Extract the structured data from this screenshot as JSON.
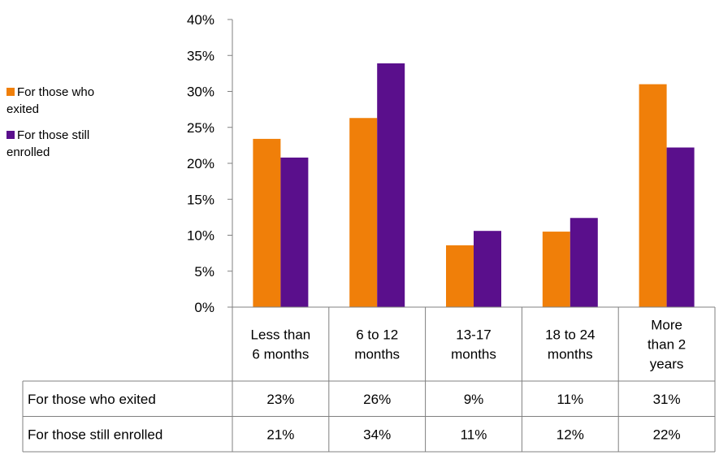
{
  "chart_data": {
    "type": "bar",
    "title": "",
    "xlabel": "",
    "ylabel": "",
    "ylim": [
      0,
      40
    ],
    "y_ticks": [
      "0%",
      "5%",
      "10%",
      "15%",
      "20%",
      "25%",
      "30%",
      "35%",
      "40%"
    ],
    "categories": [
      [
        "Less than",
        "6 months"
      ],
      [
        "6 to 12",
        "months"
      ],
      [
        "13-17",
        "months"
      ],
      [
        "18 to 24",
        "months"
      ],
      [
        "More",
        "than 2",
        "years"
      ]
    ],
    "series": [
      {
        "name": "For those who exited",
        "color": "#f07f09",
        "values": [
          23.4,
          26.3,
          8.6,
          10.5,
          31.0
        ],
        "labels": [
          "23%",
          "26%",
          "9%",
          "11%",
          "31%"
        ]
      },
      {
        "name": "For those still enrolled",
        "color": "#5a0f8c",
        "values": [
          20.8,
          33.9,
          10.6,
          12.4,
          22.2
        ],
        "labels": [
          "21%",
          "34%",
          "11%",
          "12%",
          "22%"
        ]
      }
    ],
    "legend": {
      "placement": "left",
      "entries": [
        [
          "For those who",
          "exited"
        ],
        [
          "For those still",
          "enrolled"
        ]
      ]
    },
    "grid": false,
    "data_table": true
  }
}
